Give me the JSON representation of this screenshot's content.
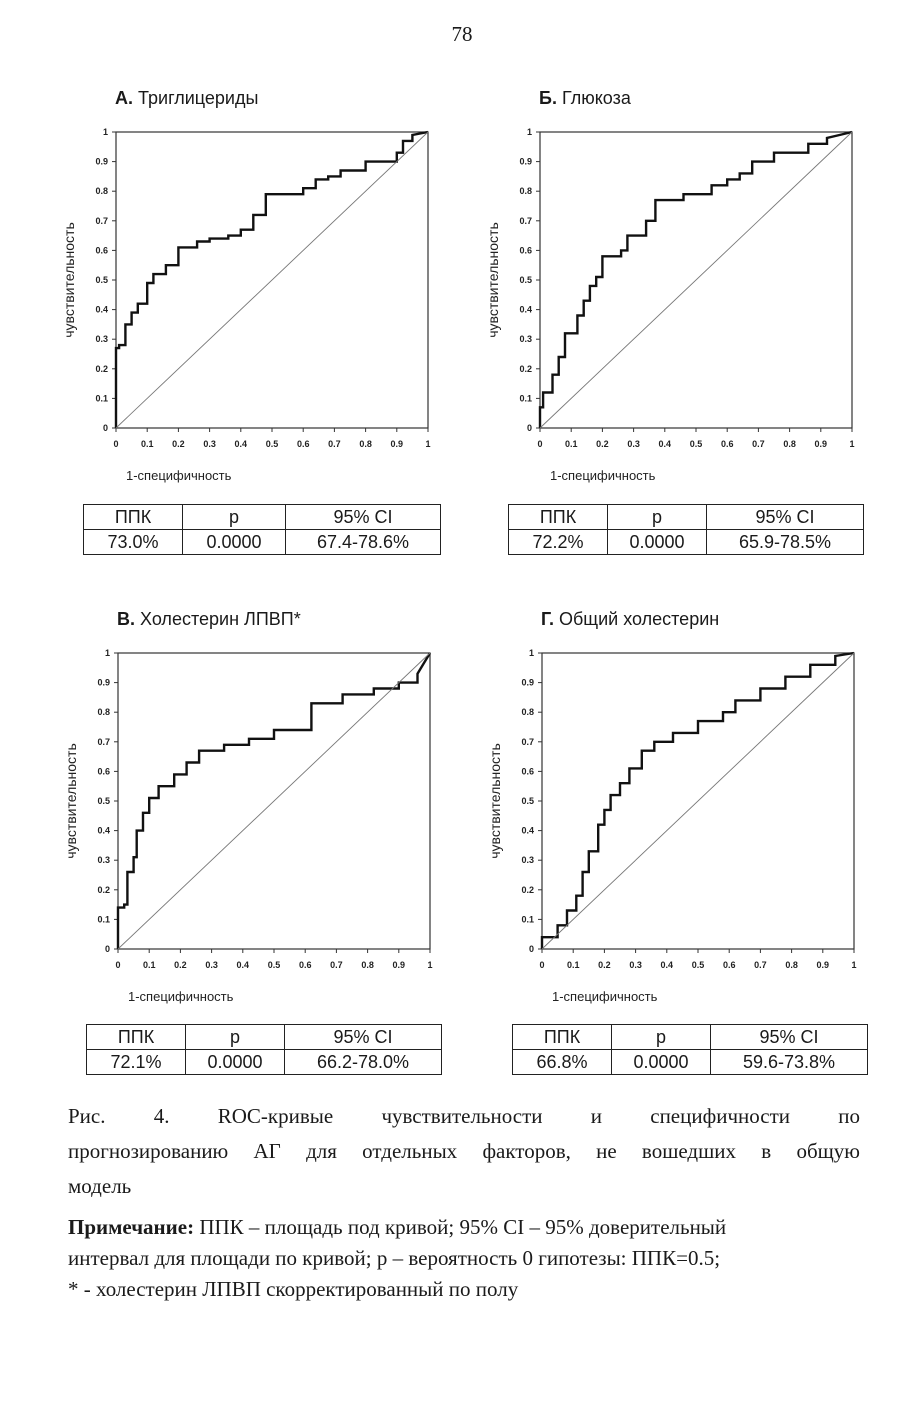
{
  "page_number": "78",
  "chart_data": [
    {
      "type": "line",
      "panel_letter": "А.",
      "title": "Триглицериды",
      "xlabel": "1-специфичность",
      "ylabel": "чувствительность",
      "xlim": [
        0,
        1
      ],
      "ylim": [
        0,
        1
      ],
      "x_ticks": [
        "0",
        "0.1",
        "0.2",
        "0.3",
        "0.4",
        "0.5",
        "0.6",
        "0.7",
        "0.8",
        "0.9",
        "1"
      ],
      "y_ticks": [
        "0",
        "0.1",
        "0.2",
        "0.3",
        "0.4",
        "0.5",
        "0.6",
        "0.7",
        "0.8",
        "0.9",
        "1"
      ],
      "grid": false,
      "series": [
        {
          "role": "roc",
          "x": [
            0,
            0,
            0.01,
            0.01,
            0.03,
            0.03,
            0.05,
            0.05,
            0.07,
            0.07,
            0.1,
            0.1,
            0.12,
            0.12,
            0.16,
            0.16,
            0.2,
            0.2,
            0.26,
            0.26,
            0.3,
            0.3,
            0.36,
            0.36,
            0.4,
            0.4,
            0.44,
            0.44,
            0.48,
            0.48,
            0.6,
            0.6,
            0.64,
            0.64,
            0.68,
            0.68,
            0.72,
            0.72,
            0.8,
            0.8,
            0.9,
            0.9,
            0.92,
            0.92,
            0.95,
            0.95,
            1
          ],
          "y": [
            0,
            0.27,
            0.27,
            0.28,
            0.28,
            0.35,
            0.35,
            0.39,
            0.39,
            0.42,
            0.42,
            0.49,
            0.49,
            0.52,
            0.52,
            0.55,
            0.55,
            0.61,
            0.61,
            0.63,
            0.63,
            0.64,
            0.64,
            0.65,
            0.65,
            0.67,
            0.67,
            0.72,
            0.72,
            0.79,
            0.79,
            0.81,
            0.81,
            0.84,
            0.84,
            0.85,
            0.85,
            0.87,
            0.87,
            0.9,
            0.9,
            0.93,
            0.93,
            0.97,
            0.97,
            0.99,
            1
          ]
        },
        {
          "role": "diagonal",
          "x": [
            0,
            1
          ],
          "y": [
            0,
            1
          ]
        }
      ],
      "stats": {
        "headers": [
          "ППК",
          "р",
          "95% CI"
        ],
        "values": [
          "73.0%",
          "0.0000",
          "67.4-78.6%"
        ]
      }
    },
    {
      "type": "line",
      "panel_letter": "Б.",
      "title": "Глюкоза",
      "xlabel": "1-специфичность",
      "ylabel": "чувствительность",
      "xlim": [
        0,
        1
      ],
      "ylim": [
        0,
        1
      ],
      "x_ticks": [
        "0",
        "0.1",
        "0.2",
        "0.3",
        "0.4",
        "0.5",
        "0.6",
        "0.7",
        "0.8",
        "0.9",
        "1"
      ],
      "y_ticks": [
        "0",
        "0.1",
        "0.2",
        "0.3",
        "0.4",
        "0.5",
        "0.6",
        "0.7",
        "0.8",
        "0.9",
        "1"
      ],
      "grid": false,
      "series": [
        {
          "role": "roc",
          "x": [
            0,
            0,
            0.01,
            0.01,
            0.04,
            0.04,
            0.06,
            0.06,
            0.08,
            0.08,
            0.12,
            0.12,
            0.14,
            0.14,
            0.16,
            0.16,
            0.18,
            0.18,
            0.2,
            0.2,
            0.26,
            0.26,
            0.28,
            0.28,
            0.34,
            0.34,
            0.37,
            0.37,
            0.46,
            0.46,
            0.55,
            0.55,
            0.6,
            0.6,
            0.64,
            0.64,
            0.68,
            0.68,
            0.75,
            0.75,
            0.86,
            0.86,
            0.92,
            0.92,
            0.96,
            1
          ],
          "y": [
            0,
            0.07,
            0.07,
            0.12,
            0.12,
            0.18,
            0.18,
            0.24,
            0.24,
            0.32,
            0.32,
            0.38,
            0.38,
            0.43,
            0.43,
            0.48,
            0.48,
            0.51,
            0.51,
            0.58,
            0.58,
            0.6,
            0.6,
            0.65,
            0.65,
            0.7,
            0.7,
            0.77,
            0.77,
            0.79,
            0.79,
            0.82,
            0.82,
            0.84,
            0.84,
            0.86,
            0.86,
            0.9,
            0.9,
            0.93,
            0.93,
            0.96,
            0.96,
            0.98,
            0.99,
            1
          ]
        },
        {
          "role": "diagonal",
          "x": [
            0,
            1
          ],
          "y": [
            0,
            1
          ]
        }
      ],
      "stats": {
        "headers": [
          "ППК",
          "р",
          "95% CI"
        ],
        "values": [
          "72.2%",
          "0.0000",
          "65.9-78.5%"
        ]
      }
    },
    {
      "type": "line",
      "panel_letter": "В.",
      "title": "Холестерин ЛПВП*",
      "xlabel": "1-специфичность",
      "ylabel": "чувствительность",
      "xlim": [
        0,
        1
      ],
      "ylim": [
        0,
        1
      ],
      "x_ticks": [
        "0",
        "0.1",
        "0.2",
        "0.3",
        "0.4",
        "0.5",
        "0.6",
        "0.7",
        "0.8",
        "0.9",
        "1"
      ],
      "y_ticks": [
        "0",
        "0.1",
        "0.2",
        "0.3",
        "0.4",
        "0.5",
        "0.6",
        "0.7",
        "0.8",
        "0.9",
        "1"
      ],
      "grid": false,
      "series": [
        {
          "role": "roc",
          "x": [
            0,
            0,
            0.02,
            0.02,
            0.03,
            0.03,
            0.05,
            0.05,
            0.06,
            0.06,
            0.08,
            0.08,
            0.1,
            0.1,
            0.13,
            0.13,
            0.18,
            0.18,
            0.22,
            0.22,
            0.26,
            0.26,
            0.34,
            0.34,
            0.42,
            0.42,
            0.5,
            0.5,
            0.62,
            0.62,
            0.72,
            0.72,
            0.82,
            0.82,
            0.9,
            0.9,
            0.96,
            0.96,
            1
          ],
          "y": [
            0,
            0.14,
            0.14,
            0.15,
            0.15,
            0.26,
            0.26,
            0.31,
            0.31,
            0.4,
            0.4,
            0.46,
            0.46,
            0.51,
            0.51,
            0.55,
            0.55,
            0.59,
            0.59,
            0.63,
            0.63,
            0.67,
            0.67,
            0.69,
            0.69,
            0.71,
            0.71,
            0.74,
            0.74,
            0.83,
            0.83,
            0.86,
            0.86,
            0.88,
            0.88,
            0.9,
            0.9,
            0.93,
            1
          ]
        },
        {
          "role": "diagonal",
          "x": [
            0,
            1
          ],
          "y": [
            0,
            1
          ]
        }
      ],
      "stats": {
        "headers": [
          "ППК",
          "р",
          "95% CI"
        ],
        "values": [
          "72.1%",
          "0.0000",
          "66.2-78.0%"
        ]
      }
    },
    {
      "type": "line",
      "panel_letter": "Г.",
      "title": "Общий холестерин",
      "xlabel": "1-специфичность",
      "ylabel": "чувствительность",
      "xlim": [
        0,
        1
      ],
      "ylim": [
        0,
        1
      ],
      "x_ticks": [
        "0",
        "0.1",
        "0.2",
        "0.3",
        "0.4",
        "0.5",
        "0.6",
        "0.7",
        "0.8",
        "0.9",
        "1"
      ],
      "y_ticks": [
        "0",
        "0.1",
        "0.2",
        "0.3",
        "0.4",
        "0.5",
        "0.6",
        "0.7",
        "0.8",
        "0.9",
        "1"
      ],
      "grid": false,
      "series": [
        {
          "role": "roc",
          "x": [
            0,
            0,
            0.05,
            0.05,
            0.08,
            0.08,
            0.11,
            0.11,
            0.13,
            0.13,
            0.15,
            0.15,
            0.18,
            0.18,
            0.2,
            0.2,
            0.22,
            0.22,
            0.25,
            0.25,
            0.28,
            0.28,
            0.32,
            0.32,
            0.36,
            0.36,
            0.42,
            0.42,
            0.5,
            0.5,
            0.58,
            0.58,
            0.62,
            0.62,
            0.7,
            0.7,
            0.78,
            0.78,
            0.86,
            0.86,
            0.94,
            0.94,
            1
          ],
          "y": [
            0,
            0.04,
            0.04,
            0.08,
            0.08,
            0.13,
            0.13,
            0.18,
            0.18,
            0.26,
            0.26,
            0.33,
            0.33,
            0.42,
            0.42,
            0.47,
            0.47,
            0.52,
            0.52,
            0.56,
            0.56,
            0.61,
            0.61,
            0.67,
            0.67,
            0.7,
            0.7,
            0.73,
            0.73,
            0.77,
            0.77,
            0.8,
            0.8,
            0.84,
            0.84,
            0.88,
            0.88,
            0.92,
            0.92,
            0.96,
            0.96,
            0.99,
            1
          ]
        },
        {
          "role": "diagonal",
          "x": [
            0,
            1
          ],
          "y": [
            0,
            1
          ]
        }
      ],
      "stats": {
        "headers": [
          "ППК",
          "р",
          "95% CI"
        ],
        "values": [
          "66.8%",
          "0.0000",
          "59.6-73.8%"
        ]
      }
    }
  ],
  "caption": {
    "line1": "Рис. 4. ROC-кривые чувствительности и специфичности по",
    "line2": "прогнозированию АГ для отдельных факторов, не вошедших в общую",
    "line3": "модель"
  },
  "note": {
    "label": "Примечание:",
    "line1": " ППК – площадь под кривой; 95% CI – 95% доверительный",
    "line2": "интервал для площади по кривой; р – вероятность 0 гипотезы: ППК=0.5;",
    "line3": "* - холестерин ЛПВП скорректированный по полу"
  }
}
